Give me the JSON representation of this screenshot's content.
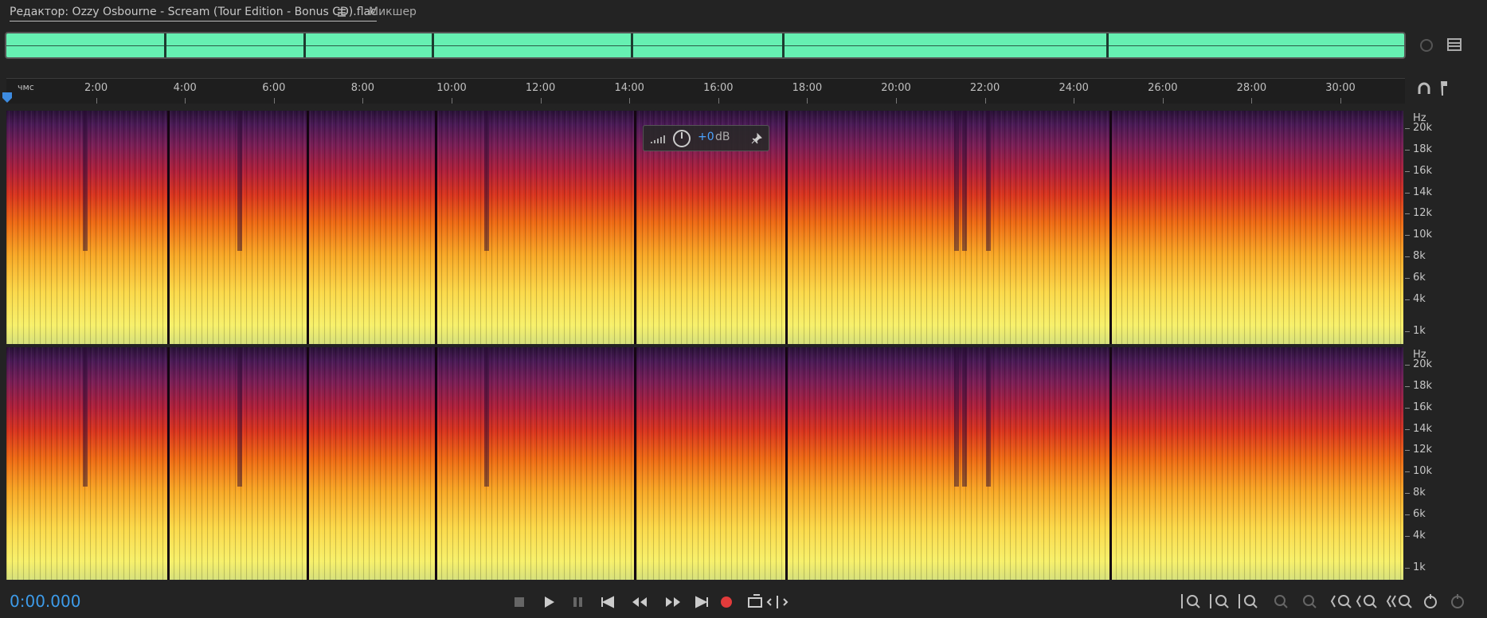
{
  "tabs": [
    {
      "label": "Редактор: Ozzy Osbourne - Scream (Tour Edition - Bonus CD).flac"
    },
    {
      "label": "Микшер"
    }
  ],
  "ruler": {
    "unit": "чмс",
    "ticks": [
      "2:00",
      "4:00",
      "6:00",
      "8:00",
      "10:00",
      "12:00",
      "14:00",
      "16:00",
      "18:00",
      "20:00",
      "22:00",
      "24:00",
      "26:00",
      "28:00",
      "30:00"
    ]
  },
  "hud": {
    "gain": "+0",
    "unit": "dB"
  },
  "channels": [
    {
      "unit": "Hz",
      "labels": [
        "20k",
        "18k",
        "16k",
        "14k",
        "12k",
        "10k",
        "8k",
        "6k",
        "4k",
        "1k"
      ]
    },
    {
      "unit": "Hz",
      "labels": [
        "20k",
        "18k",
        "16k",
        "14k",
        "12k",
        "10k",
        "8k",
        "6k",
        "4k",
        "1k"
      ]
    }
  ],
  "time_display": "0:00.000"
}
